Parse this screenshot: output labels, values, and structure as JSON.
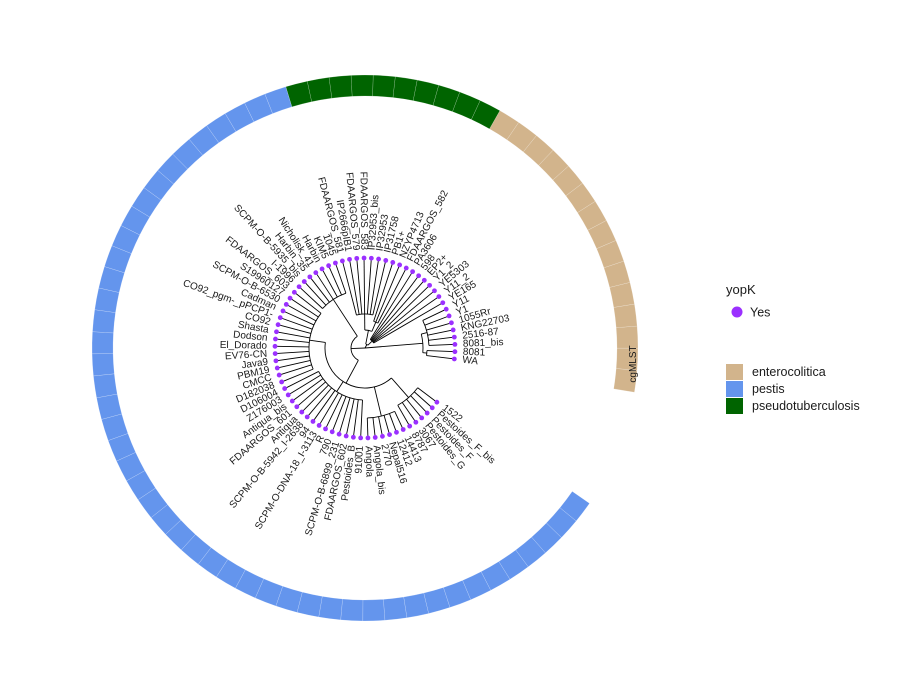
{
  "ring_label": "cgMLST",
  "legend": {
    "marker_title": "yopK",
    "marker_item": "Yes",
    "species_items": [
      {
        "key": "enterocolitica",
        "label": "enterocolitica"
      },
      {
        "key": "pestis",
        "label": "pestis"
      },
      {
        "key": "pseudotuberculosis",
        "label": "pseudotuberculosis"
      }
    ]
  },
  "colors": {
    "enterocolitica": "#d2b48c",
    "pestis": "#6495ed",
    "pseudotuberculosis": "#006400",
    "marker": "#9b30ff",
    "tree": "#000000"
  },
  "tips": [
    {
      "label": "WA",
      "species": "enterocolitica"
    },
    {
      "label": "8081",
      "species": "enterocolitica"
    },
    {
      "label": "8081_bis",
      "species": "enterocolitica"
    },
    {
      "label": "2516-87",
      "species": "enterocolitica"
    },
    {
      "label": "KNG22703",
      "species": "enterocolitica"
    },
    {
      "label": "1055Rr",
      "species": "enterocolitica"
    },
    {
      "label": "Y1",
      "species": "enterocolitica"
    },
    {
      "label": "Y11",
      "species": "enterocolitica"
    },
    {
      "label": "YE165",
      "species": "enterocolitica"
    },
    {
      "label": "Y11_2",
      "species": "enterocolitica"
    },
    {
      "label": "YE5303",
      "species": "enterocolitica"
    },
    {
      "label": "Y1_2",
      "species": "enterocolitica"
    },
    {
      "label": "EP2+",
      "species": "enterocolitica"
    },
    {
      "label": "598",
      "species": "enterocolitica"
    },
    {
      "label": "PA3606",
      "species": "enterocolitica"
    },
    {
      "label": "FDAARGOS_582",
      "species": "pseudotuberculosis"
    },
    {
      "label": "NZYP4713",
      "species": "pseudotuberculosis"
    },
    {
      "label": "PB1+",
      "species": "pseudotuberculosis"
    },
    {
      "label": "IP31758",
      "species": "pseudotuberculosis"
    },
    {
      "label": "IP32953",
      "species": "pseudotuberculosis"
    },
    {
      "label": "IP32953_bis",
      "species": "pseudotuberculosis"
    },
    {
      "label": "FDAARGOS_583",
      "species": "pseudotuberculosis"
    },
    {
      "label": "FDAARGOS_579",
      "species": "pseudotuberculosis"
    },
    {
      "label": "IP2666pIB1",
      "species": "pseudotuberculosis"
    },
    {
      "label": "FDAARGOS_581",
      "species": "pseudotuberculosis"
    },
    {
      "label": "1045",
      "species": "pestis"
    },
    {
      "label": "KIM5",
      "species": "pestis"
    },
    {
      "label": "Harbin",
      "species": "pestis"
    },
    {
      "label": "Nicholisk_41",
      "species": "pestis"
    },
    {
      "label": "Harbin_35",
      "species": "pestis"
    },
    {
      "label": "SCPM-O-B-5935_bis",
      "species": "pestis"
    },
    {
      "label": "I-1996",
      "species": "pestis"
    },
    {
      "label": "FDAARGOS_603",
      "species": "pestis"
    },
    {
      "label": "S19960127",
      "species": "pestis"
    },
    {
      "label": "SCPM-O-B-6530",
      "species": "pestis"
    },
    {
      "label": "Cadman",
      "species": "pestis"
    },
    {
      "label": "CO92_pgm-_pPCP1-",
      "species": "pestis"
    },
    {
      "label": "CO92",
      "species": "pestis"
    },
    {
      "label": "Shasta",
      "species": "pestis"
    },
    {
      "label": "Dodson",
      "species": "pestis"
    },
    {
      "label": "El_Dorado",
      "species": "pestis"
    },
    {
      "label": "EV76-CN",
      "species": "pestis"
    },
    {
      "label": "Java9",
      "species": "pestis"
    },
    {
      "label": "PBM19",
      "species": "pestis"
    },
    {
      "label": "CMCC",
      "species": "pestis"
    },
    {
      "label": "D182038",
      "species": "pestis"
    },
    {
      "label": "D106004",
      "species": "pestis"
    },
    {
      "label": "Z176003",
      "species": "pestis"
    },
    {
      "label": "Antiqua_bis",
      "species": "pestis"
    },
    {
      "label": "FDAARGOS_601",
      "species": "pestis"
    },
    {
      "label": "Antiqua",
      "species": "pestis"
    },
    {
      "label": "SCPM-O-B-5942_I-2638",
      "species": "pestis"
    },
    {
      "label": "94",
      "species": "pestis"
    },
    {
      "label": "SCPM-O-DNA-18_I-3113",
      "species": "pestis"
    },
    {
      "label": "R",
      "species": "pestis"
    },
    {
      "label": "790",
      "species": "pestis"
    },
    {
      "label": "SCPM-O-B-6899_231",
      "species": "pestis"
    },
    {
      "label": "FDAARGOS_602",
      "species": "pestis"
    },
    {
      "label": "Pestoides_B",
      "species": "pestis"
    },
    {
      "label": "91001",
      "species": "pestis"
    },
    {
      "label": "Angola",
      "species": "pestis"
    },
    {
      "label": "Angola_bis",
      "species": "pestis"
    },
    {
      "label": "2770",
      "species": "pestis"
    },
    {
      "label": "Nepal516",
      "species": "pestis"
    },
    {
      "label": "12412",
      "species": "pestis"
    },
    {
      "label": "14413",
      "species": "pestis"
    },
    {
      "label": "8787",
      "species": "pestis"
    },
    {
      "label": "3067",
      "species": "pestis"
    },
    {
      "label": "Pestoides_G",
      "species": "pestis"
    },
    {
      "label": "Pestoides_F",
      "species": "pestis"
    },
    {
      "label": "Pestoides_F_bis",
      "species": "pestis"
    },
    {
      "label": "1522",
      "species": "pestis"
    }
  ]
}
